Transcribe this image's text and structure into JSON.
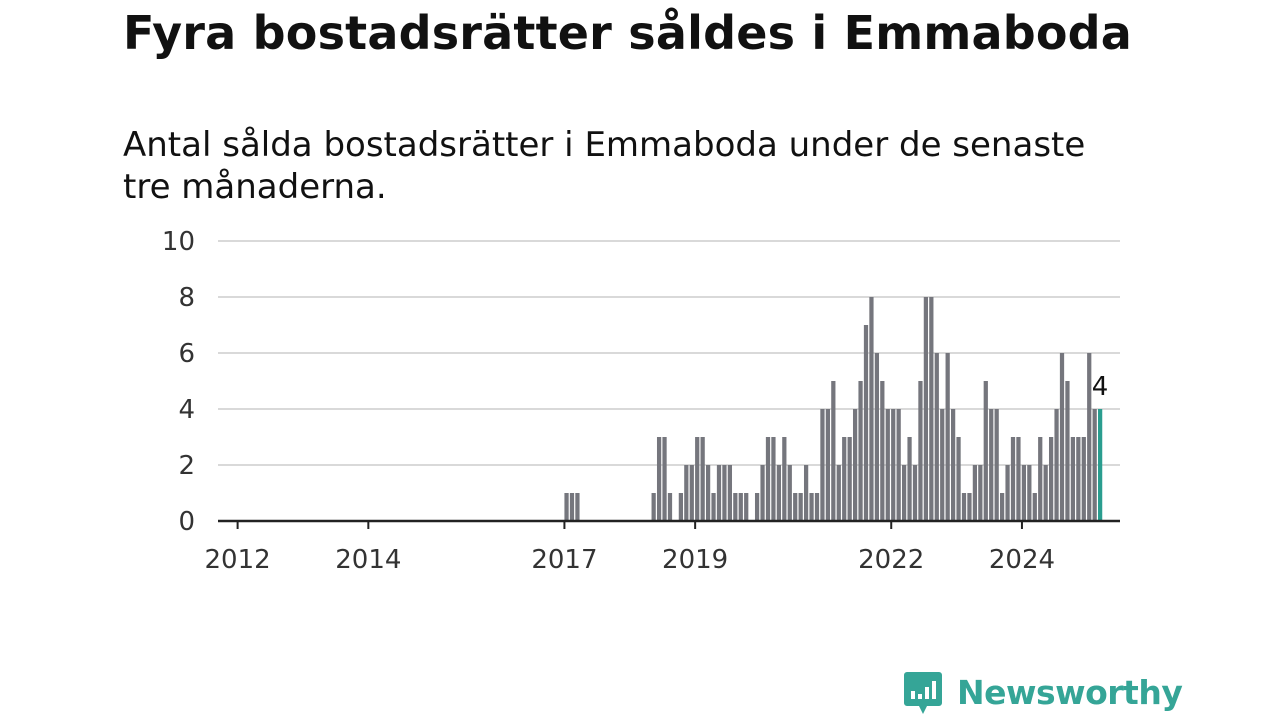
{
  "header": {
    "title": "Fyra bostadsrätter såldes i Emmaboda",
    "subtitle": "Antal sålda bostadsrätter i Emmaboda under de senaste tre månaderna."
  },
  "brand": {
    "name": "Newsworthy",
    "color": "#35a597",
    "icon": "newsworthy-logo-icon"
  },
  "colors": {
    "bar": "#75767d",
    "highlight": "#2a9d8f",
    "grid": "#d9d9d9",
    "axis": "#222222"
  },
  "chart_data": {
    "type": "bar",
    "title": "Fyra bostadsrätter såldes i Emmaboda",
    "subtitle": "Antal sålda bostadsrätter i Emmaboda under de senaste tre månaderna.",
    "xlabel": "",
    "ylabel": "",
    "ylim": [
      0,
      10
    ],
    "yticks": [
      "0",
      "2",
      "4",
      "6",
      "8",
      "10"
    ],
    "xticks": [
      "2012",
      "2014",
      "2017",
      "2019",
      "2022",
      "2024"
    ],
    "xtick_positions": [
      2012,
      2014,
      2017,
      2019,
      2022,
      2024
    ],
    "x_range": [
      2011.7,
      2025.5
    ],
    "grid": true,
    "bar_width_years": 0.0833,
    "start_year": 2017.0,
    "values": [
      1,
      1,
      1,
      0,
      0,
      0,
      0,
      0,
      0,
      0,
      0,
      0,
      0,
      0,
      0,
      0,
      1,
      3,
      3,
      1,
      0,
      1,
      2,
      2,
      3,
      3,
      2,
      1,
      2,
      2,
      2,
      1,
      1,
      1,
      0,
      1,
      2,
      3,
      3,
      2,
      3,
      2,
      1,
      1,
      2,
      1,
      1,
      4,
      4,
      5,
      2,
      3,
      3,
      4,
      5,
      7,
      8,
      6,
      5,
      4,
      4,
      4,
      2,
      3,
      2,
      5,
      8,
      8,
      6,
      4,
      6,
      4,
      3,
      1,
      1,
      2,
      2,
      5,
      4,
      4,
      1,
      2,
      3,
      3,
      2,
      2,
      1,
      3,
      2,
      3,
      4,
      6,
      5,
      3,
      3,
      3,
      6,
      4,
      4
    ],
    "last_value_label": "4",
    "highlight": "last"
  }
}
